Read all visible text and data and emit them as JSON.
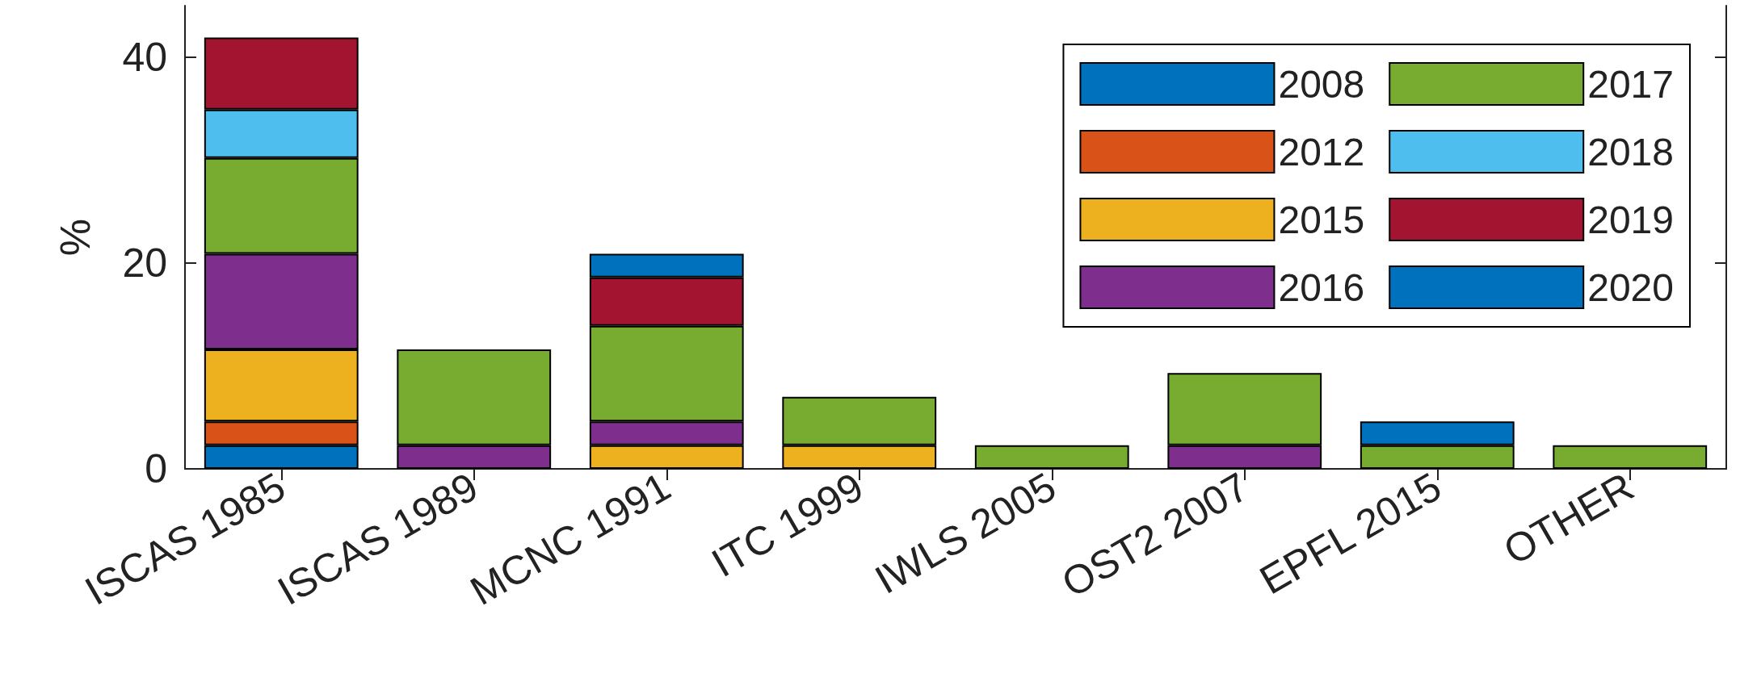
{
  "chart_data": {
    "type": "bar",
    "stacked": true,
    "ylabel": "%",
    "categories": [
      "ISCAS 1985",
      "ISCAS 1989",
      "MCNC 1991",
      "ITC 1999",
      "IWLS 2005",
      "OST2 2007",
      "EPFL 2015",
      "OTHER"
    ],
    "series": [
      {
        "name": "2008",
        "color": "#0072bd",
        "values": [
          2.3,
          null,
          null,
          null,
          null,
          null,
          null,
          null
        ]
      },
      {
        "name": "2012",
        "color": "#d95319",
        "values": [
          2.3,
          null,
          null,
          null,
          null,
          null,
          null,
          null
        ]
      },
      {
        "name": "2015",
        "color": "#edb120",
        "values": [
          7.0,
          null,
          2.3,
          2.3,
          null,
          null,
          null,
          null
        ]
      },
      {
        "name": "2016",
        "color": "#7e2f8e",
        "values": [
          9.3,
          2.3,
          2.3,
          null,
          null,
          2.3,
          null,
          null
        ]
      },
      {
        "name": "2017",
        "color": "#77ac30",
        "values": [
          9.3,
          9.3,
          9.3,
          4.7,
          2.3,
          7.0,
          2.3,
          2.3
        ]
      },
      {
        "name": "2018",
        "color": "#4dbeee",
        "values": [
          4.7,
          null,
          null,
          null,
          null,
          null,
          null,
          null
        ]
      },
      {
        "name": "2019",
        "color": "#a2142f",
        "values": [
          7.0,
          null,
          4.7,
          null,
          null,
          null,
          null,
          null
        ]
      },
      {
        "name": "2020",
        "color": "#0072bd",
        "values": [
          null,
          null,
          2.3,
          null,
          null,
          null,
          2.3,
          null
        ]
      }
    ],
    "ylim": [
      0,
      45
    ],
    "yticks": [
      0,
      20,
      40
    ],
    "grid": false,
    "legend": "top right"
  }
}
